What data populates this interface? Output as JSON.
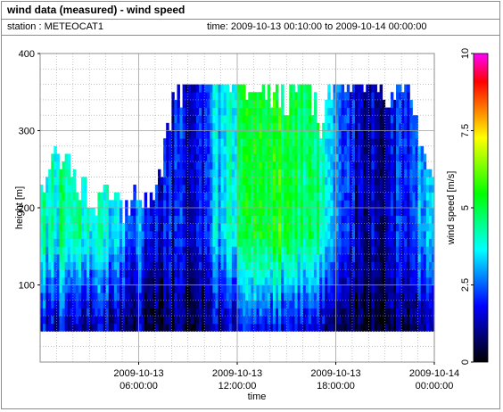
{
  "header": {
    "title": "wind data (measured) - wind speed",
    "station": "station : METEOCAT1",
    "time_range": "time: 2009-10-13 00:10:00 to 2009-10-14 00:00:00"
  },
  "colors": {
    "frame": "#8c8c8c",
    "grid": "#a0a0a0",
    "colormap": [
      "#000000",
      "#00007f",
      "#0000ff",
      "#0080ff",
      "#00ffff",
      "#00ff80",
      "#00ff00",
      "#80ff00",
      "#ffff00",
      "#ff8000",
      "#ff0000",
      "#ff00ff"
    ]
  },
  "chart_data": {
    "type": "heatmap",
    "title": "wind data (measured) - wind speed",
    "xlabel": "time",
    "ylabel": "height [m]",
    "colorbar_label": "wind speed [m/s]",
    "x_range_hours": [
      0,
      24
    ],
    "x_ticks": [
      {
        "hour": 6,
        "line1": "2009-10-13",
        "line2": "06:00:00"
      },
      {
        "hour": 12,
        "line1": "2009-10-13",
        "line2": "12:00:00"
      },
      {
        "hour": 18,
        "line1": "2009-10-13",
        "line2": "18:00:00"
      },
      {
        "hour": 24,
        "line1": "2009-10-14",
        "line2": "00:00:00"
      }
    ],
    "y_range": [
      0,
      400
    ],
    "y_ticks": [
      100,
      200,
      300,
      400
    ],
    "y_tick_labels": [
      "100",
      "200",
      "300",
      "400"
    ],
    "colorbar_range": [
      0,
      10
    ],
    "colorbar_ticks": [
      0,
      2.5,
      5,
      7.5,
      10
    ],
    "colorbar_tick_labels": [
      "0",
      "2.5",
      "5",
      "7.5",
      "10"
    ],
    "grid": true,
    "height_levels_m": [
      40,
      360
    ],
    "approx_max_height_m_by_hour": [
      [
        0,
        230
      ],
      [
        1,
        270
      ],
      [
        2,
        240
      ],
      [
        3,
        200
      ],
      [
        4,
        215
      ],
      [
        5,
        195
      ],
      [
        6,
        205
      ],
      [
        7,
        210
      ],
      [
        8,
        330
      ],
      [
        9,
        365
      ],
      [
        10,
        365
      ],
      [
        11,
        365
      ],
      [
        12,
        365
      ],
      [
        13,
        350
      ],
      [
        14,
        345
      ],
      [
        15,
        335
      ],
      [
        16,
        365
      ],
      [
        17,
        305
      ],
      [
        18,
        365
      ],
      [
        19,
        365
      ],
      [
        20,
        365
      ],
      [
        21,
        340
      ],
      [
        22,
        360
      ],
      [
        23,
        290
      ],
      [
        24,
        240
      ]
    ],
    "approx_wind_speed_m_s_by_hour": [
      [
        0,
        4.0
      ],
      [
        1,
        4.3
      ],
      [
        2,
        4.8
      ],
      [
        3,
        4.2
      ],
      [
        4,
        3.8
      ],
      [
        5,
        3.0
      ],
      [
        6,
        2.6
      ],
      [
        7,
        2.0
      ],
      [
        8,
        1.7
      ],
      [
        9,
        1.5
      ],
      [
        10,
        2.2
      ],
      [
        11,
        3.6
      ],
      [
        12,
        4.5
      ],
      [
        13,
        5.0
      ],
      [
        14,
        5.2
      ],
      [
        15,
        5.2
      ],
      [
        16,
        4.8
      ],
      [
        17,
        4.5
      ],
      [
        18,
        3.0
      ],
      [
        19,
        1.6
      ],
      [
        20,
        1.2
      ],
      [
        21,
        1.3
      ],
      [
        22,
        2.0
      ],
      [
        23,
        2.8
      ],
      [
        24,
        3.2
      ]
    ]
  }
}
